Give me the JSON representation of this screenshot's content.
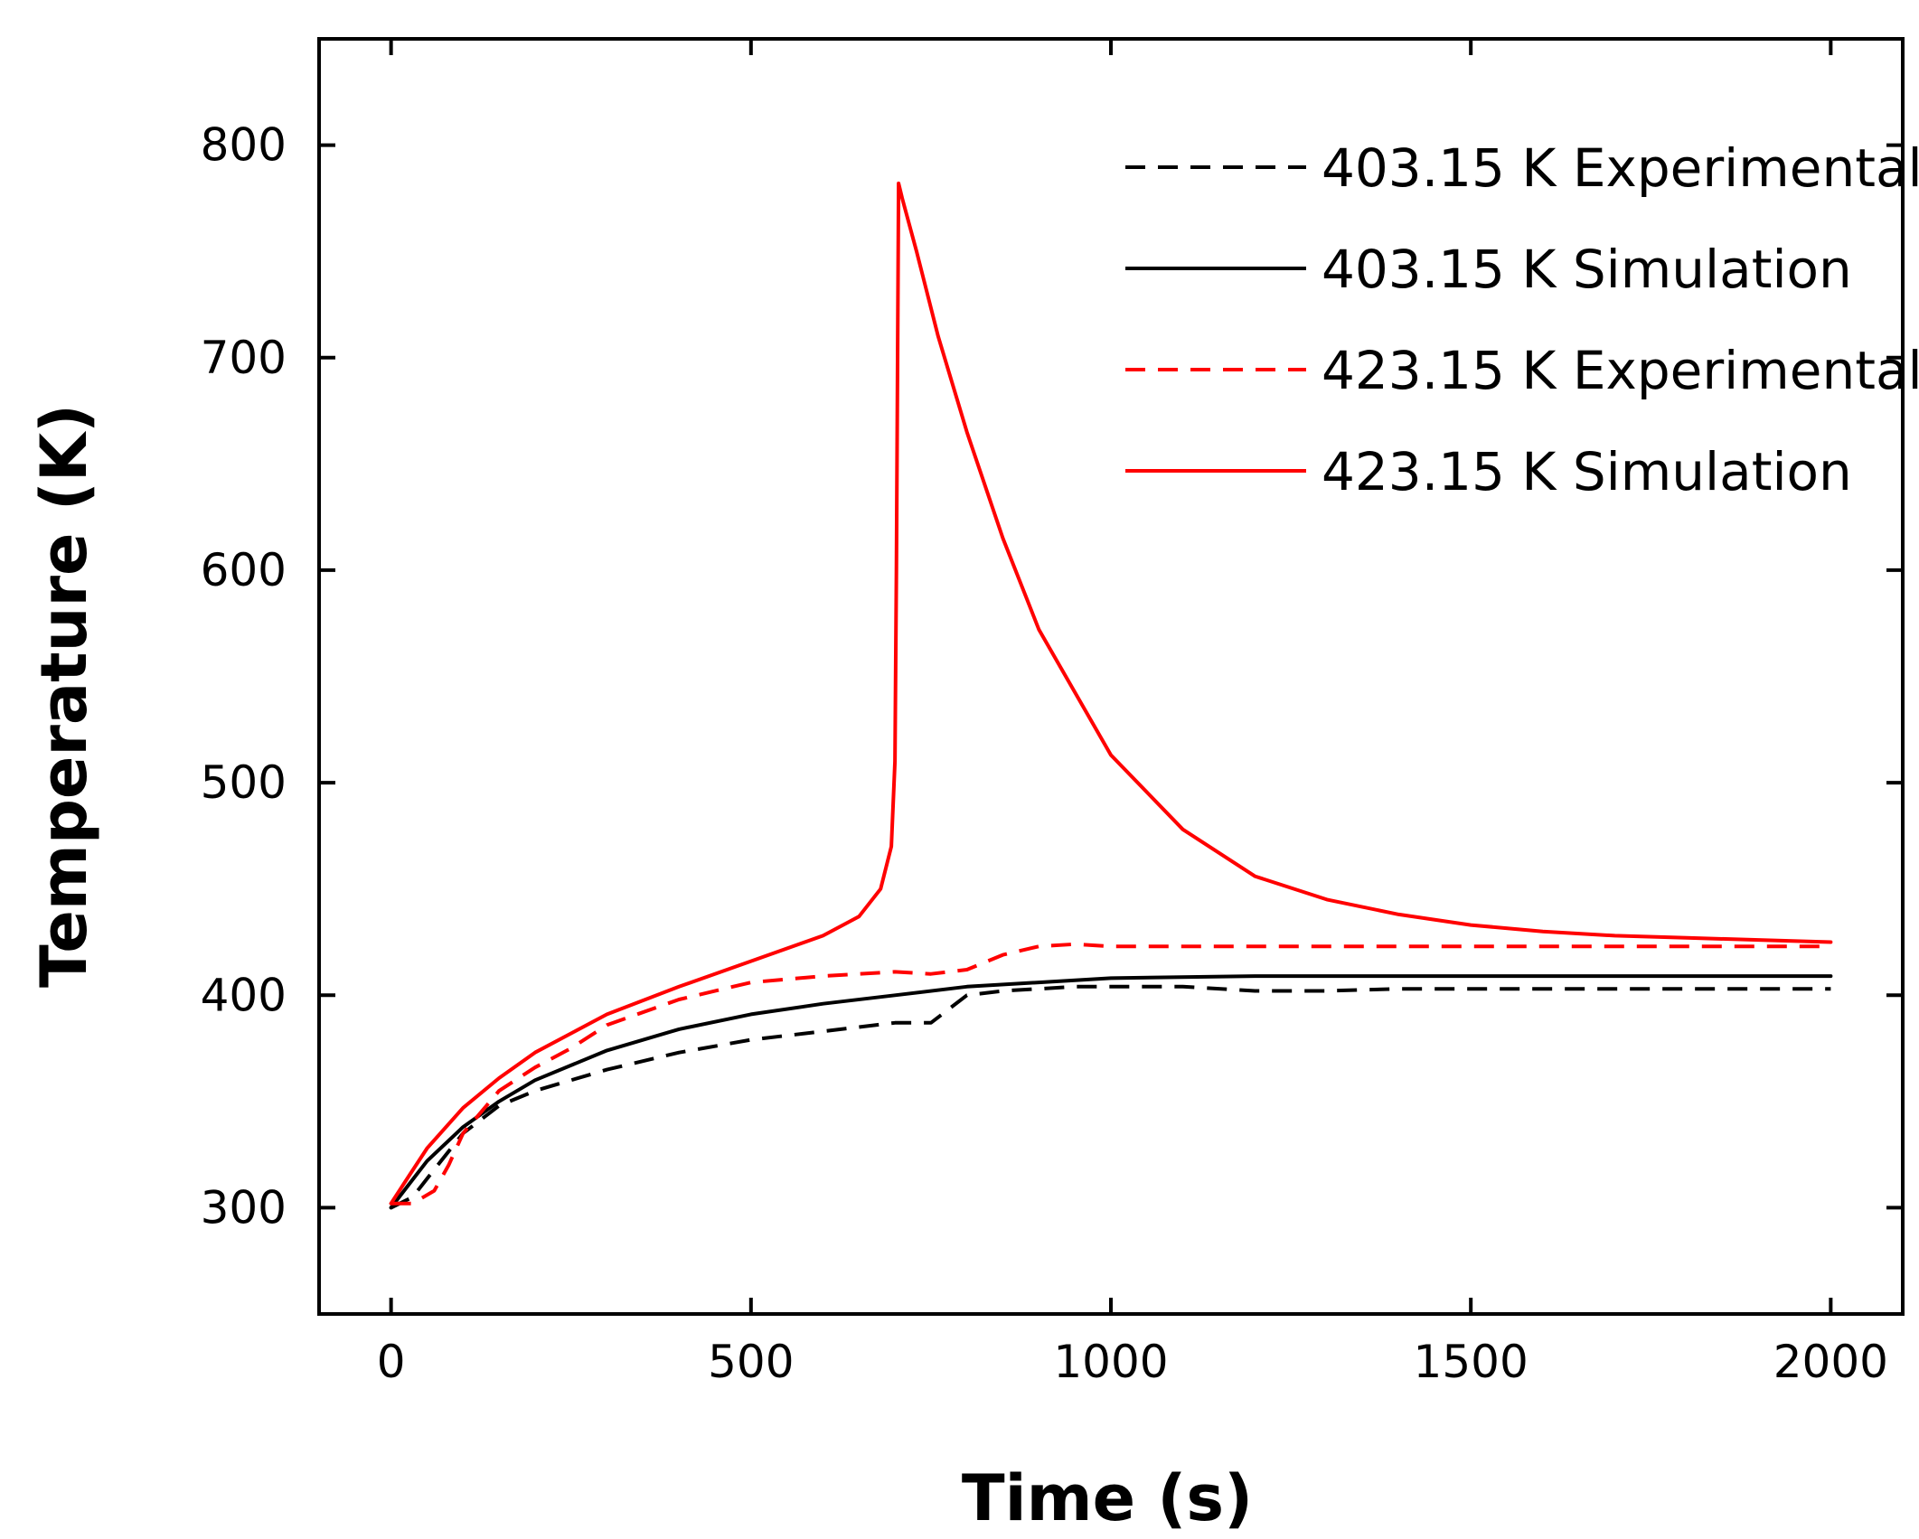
{
  "chart_data": {
    "type": "line",
    "title": "",
    "xlabel": "Time (s)",
    "ylabel": "Temperature (K)",
    "xlim": [
      -100,
      2100
    ],
    "ylim": [
      250,
      850
    ],
    "xticks": [
      0,
      500,
      1000,
      1500,
      2000
    ],
    "yticks": [
      300,
      400,
      500,
      600,
      700,
      800
    ],
    "grid": false,
    "legend_position": "top-right",
    "series": [
      {
        "name": "403.15 K Experimental",
        "color": "#000000",
        "dash": "dashed",
        "x": [
          0,
          30,
          60,
          100,
          150,
          200,
          250,
          300,
          400,
          500,
          600,
          700,
          750,
          800,
          850,
          900,
          950,
          1000,
          1100,
          1200,
          1300,
          1400,
          1600,
          1800,
          2000
        ],
        "y": [
          300,
          305,
          318,
          335,
          348,
          355,
          360,
          365,
          373,
          379,
          383,
          387,
          387,
          400,
          402,
          403,
          404,
          404,
          404,
          402,
          402,
          403,
          403,
          403,
          403
        ]
      },
      {
        "name": "403.15 K Simulation",
        "color": "#000000",
        "dash": "solid",
        "x": [
          0,
          25,
          50,
          100,
          150,
          200,
          300,
          400,
          500,
          600,
          700,
          800,
          900,
          1000,
          1200,
          1500,
          2000
        ],
        "y": [
          300,
          311,
          322,
          338,
          350,
          360,
          374,
          384,
          391,
          396,
          400,
          404,
          406,
          408,
          409,
          409,
          409
        ]
      },
      {
        "name": "423.15 K Experimental",
        "color": "#ff0000",
        "dash": "dashed",
        "x": [
          0,
          30,
          60,
          80,
          100,
          150,
          200,
          250,
          300,
          400,
          500,
          600,
          700,
          750,
          800,
          850,
          900,
          950,
          1000,
          1200,
          1500,
          2000
        ],
        "y": [
          302,
          302,
          308,
          320,
          335,
          355,
          366,
          375,
          386,
          398,
          406,
          409,
          411,
          410,
          412,
          419,
          423,
          424,
          423,
          423,
          423,
          423
        ]
      },
      {
        "name": "423.15 K Simulation",
        "color": "#ff0000",
        "dash": "solid",
        "x": [
          0,
          25,
          50,
          100,
          150,
          200,
          300,
          400,
          500,
          600,
          650,
          680,
          695,
          700,
          702,
          705,
          710,
          730,
          760,
          800,
          850,
          900,
          1000,
          1100,
          1200,
          1300,
          1400,
          1500,
          1600,
          1700,
          1800,
          1900,
          2000
        ],
        "y": [
          302,
          315,
          328,
          347,
          361,
          373,
          391,
          404,
          416,
          428,
          437,
          450,
          470,
          510,
          600,
          782,
          775,
          750,
          710,
          665,
          615,
          572,
          513,
          478,
          456,
          445,
          438,
          433,
          430,
          428,
          427,
          426,
          425
        ]
      }
    ]
  }
}
